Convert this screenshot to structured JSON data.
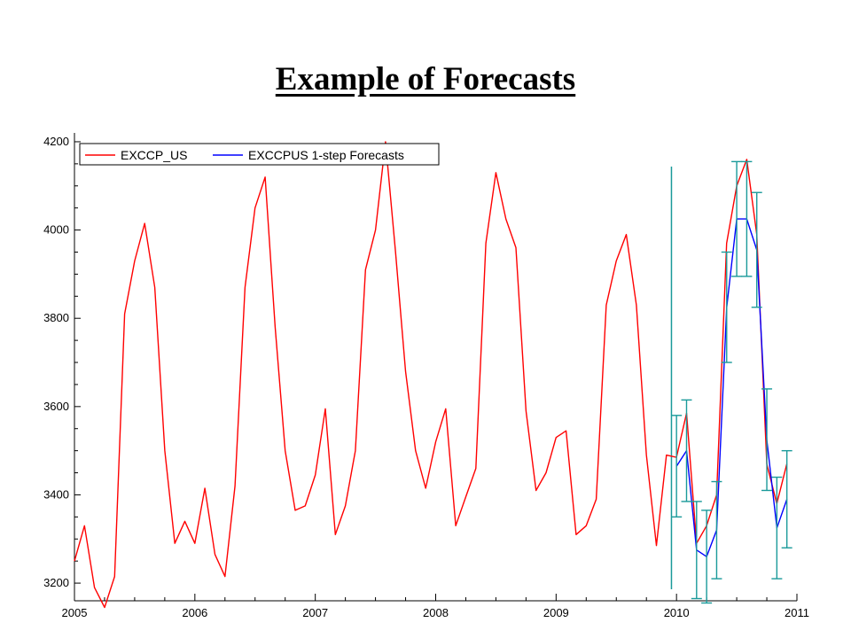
{
  "slide": {
    "title": "Example of Forecasts"
  },
  "chart_data": {
    "type": "line",
    "title": "",
    "xlabel": "",
    "ylabel": "",
    "xlim": [
      2005,
      2011
    ],
    "ylim": [
      3160,
      4220
    ],
    "x_ticks": [
      2005,
      2006,
      2007,
      2008,
      2009,
      2010,
      2011
    ],
    "y_ticks": [
      3200,
      3400,
      3600,
      3800,
      4000,
      4200
    ],
    "legend_position": "top-left",
    "grid": false,
    "forecast_start": 2009.958,
    "series": [
      {
        "name": "EXCCP_US",
        "color": "#ff0000",
        "start": 2005.0,
        "step": 0.08333,
        "values": [
          3250,
          3330,
          3190,
          3145,
          3215,
          3810,
          3930,
          4015,
          3870,
          3500,
          3290,
          3340,
          3290,
          3415,
          3265,
          3215,
          3420,
          3870,
          4050,
          4120,
          3780,
          3500,
          3365,
          3375,
          3445,
          3595,
          3310,
          3375,
          3500,
          3910,
          4000,
          4200,
          3950,
          3680,
          3500,
          3415,
          3520,
          3595,
          3330,
          3395,
          3460,
          3970,
          4130,
          4025,
          3960,
          3590,
          3410,
          3450,
          3530,
          3545,
          3310,
          3330,
          3390,
          3830,
          3930,
          3990,
          3830,
          3490,
          3285,
          3490,
          3485,
          3585,
          3290,
          3330,
          3400,
          3970,
          4100,
          4160,
          3990,
          3470,
          3380,
          3470
        ]
      },
      {
        "name": "EXCCPUS 1-step Forecasts",
        "color": "#0000ff",
        "start": 2010.0,
        "step": 0.08333,
        "values": [
          3465,
          3500,
          3275,
          3260,
          3320,
          3825,
          4025,
          4025,
          3955,
          3525,
          3325,
          3390
        ],
        "error_band": [
          115,
          115,
          110,
          105,
          110,
          125,
          130,
          130,
          130,
          115,
          115,
          110
        ]
      }
    ]
  }
}
